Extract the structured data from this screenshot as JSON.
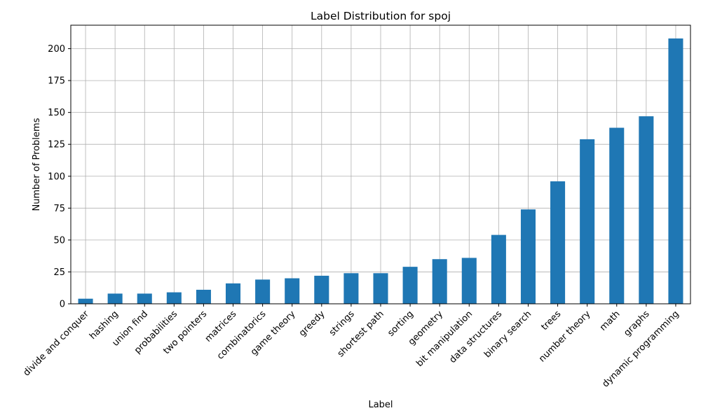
{
  "chart_data": {
    "type": "bar",
    "title": "Label Distribution for spoj",
    "xlabel": "Label",
    "ylabel": "Number of Problems",
    "categories": [
      "divide and conquer",
      "hashing",
      "union find",
      "probabilities",
      "two pointers",
      "matrices",
      "combinatorics",
      "game theory",
      "greedy",
      "strings",
      "shortest path",
      "sorting",
      "geometry",
      "bit manipulation",
      "data structures",
      "binary search",
      "trees",
      "number theory",
      "math",
      "graphs",
      "dynamic programming"
    ],
    "values": [
      4,
      8,
      8,
      9,
      11,
      16,
      19,
      20,
      22,
      24,
      24,
      29,
      35,
      36,
      54,
      74,
      96,
      129,
      138,
      147,
      208
    ],
    "ylim": [
      0,
      218.4
    ],
    "yticks": [
      0,
      25,
      50,
      75,
      100,
      125,
      150,
      175,
      200
    ],
    "grid": true,
    "bar_color": "#1f77b4",
    "grid_color": "#b0b0b0"
  }
}
